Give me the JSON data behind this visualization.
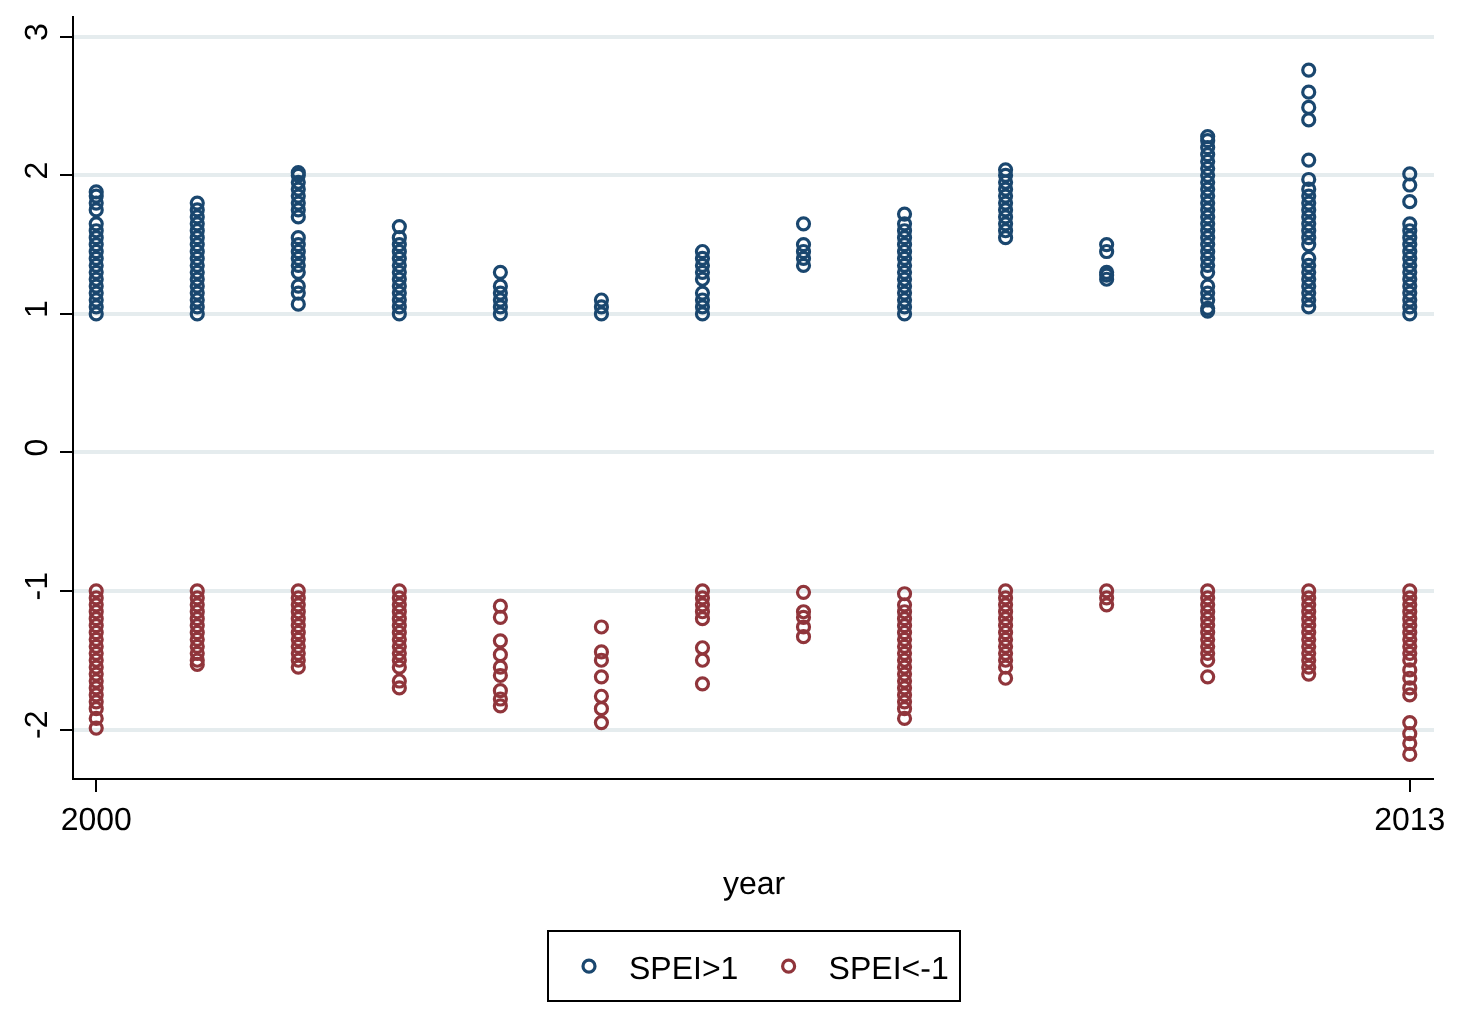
{
  "chart_data": {
    "type": "scatter",
    "xlabel": "year",
    "xlim": [
      1999.78,
      2013.24
    ],
    "xticks": [
      2000,
      2013
    ],
    "ylim": [
      -2.35,
      3.15
    ],
    "yticks": [
      -2,
      -1,
      0,
      1,
      2,
      3
    ],
    "grid": "y",
    "legend": "bottom",
    "marker": "circle",
    "series": [
      {
        "name": "SPEI>1",
        "color": "#1a476f",
        "x": [
          2000,
          2000,
          2000,
          2000,
          2000,
          2000,
          2000,
          2000,
          2000,
          2000,
          2000,
          2000,
          2000,
          2000,
          2000,
          2000,
          2000,
          2000,
          2001,
          2001,
          2001,
          2001,
          2001,
          2001,
          2001,
          2001,
          2001,
          2001,
          2001,
          2001,
          2001,
          2001,
          2001,
          2001,
          2001,
          2002,
          2002,
          2002,
          2002,
          2002,
          2002,
          2002,
          2002,
          2002,
          2002,
          2002,
          2002,
          2002,
          2002,
          2002,
          2002,
          2002,
          2003,
          2003,
          2003,
          2003,
          2003,
          2003,
          2003,
          2003,
          2003,
          2003,
          2003,
          2003,
          2003,
          2004,
          2004,
          2004,
          2004,
          2004,
          2004,
          2005,
          2005,
          2005,
          2006,
          2006,
          2006,
          2006,
          2006,
          2006,
          2006,
          2006,
          2006,
          2007,
          2007,
          2007,
          2007,
          2007,
          2008,
          2008,
          2008,
          2008,
          2008,
          2008,
          2008,
          2008,
          2008,
          2008,
          2008,
          2008,
          2008,
          2008,
          2008,
          2009,
          2009,
          2009,
          2009,
          2009,
          2009,
          2009,
          2009,
          2009,
          2009,
          2009,
          2010,
          2010,
          2010,
          2010,
          2010,
          2011,
          2011,
          2011,
          2011,
          2011,
          2011,
          2011,
          2011,
          2011,
          2011,
          2011,
          2011,
          2011,
          2011,
          2011,
          2011,
          2011,
          2011,
          2011,
          2011,
          2011,
          2011,
          2011,
          2011,
          2011,
          2011,
          2012,
          2012,
          2012,
          2012,
          2012,
          2012,
          2012,
          2012,
          2012,
          2012,
          2012,
          2012,
          2012,
          2012,
          2012,
          2012,
          2012,
          2012,
          2012,
          2012,
          2012,
          2012,
          2012,
          2013,
          2013,
          2013,
          2013,
          2013,
          2013,
          2013,
          2013,
          2013,
          2013,
          2013,
          2013,
          2013,
          2013,
          2013,
          2013,
          2013
        ],
        "values": [
          1.0,
          1.05,
          1.1,
          1.15,
          1.2,
          1.25,
          1.3,
          1.35,
          1.4,
          1.45,
          1.5,
          1.55,
          1.6,
          1.65,
          1.75,
          1.8,
          1.85,
          1.88,
          1.0,
          1.05,
          1.1,
          1.15,
          1.2,
          1.25,
          1.3,
          1.35,
          1.4,
          1.45,
          1.5,
          1.55,
          1.6,
          1.65,
          1.7,
          1.75,
          1.8,
          1.07,
          1.15,
          1.2,
          1.3,
          1.35,
          1.4,
          1.45,
          1.5,
          1.55,
          1.7,
          1.75,
          1.8,
          1.85,
          1.9,
          1.95,
          2.0,
          2.02,
          1.0,
          1.05,
          1.1,
          1.15,
          1.2,
          1.25,
          1.3,
          1.35,
          1.4,
          1.45,
          1.5,
          1.55,
          1.63,
          1.0,
          1.05,
          1.1,
          1.15,
          1.2,
          1.3,
          1.0,
          1.05,
          1.1,
          1.0,
          1.05,
          1.1,
          1.15,
          1.25,
          1.3,
          1.35,
          1.4,
          1.45,
          1.35,
          1.4,
          1.45,
          1.5,
          1.65,
          1.0,
          1.05,
          1.1,
          1.15,
          1.2,
          1.25,
          1.3,
          1.35,
          1.4,
          1.45,
          1.5,
          1.55,
          1.6,
          1.65,
          1.72,
          1.55,
          1.6,
          1.65,
          1.7,
          1.75,
          1.8,
          1.85,
          1.9,
          1.95,
          2.0,
          2.04,
          1.25,
          1.28,
          1.3,
          1.45,
          1.5,
          1.04,
          1.1,
          1.15,
          1.2,
          1.3,
          1.35,
          1.4,
          1.45,
          1.5,
          1.55,
          1.6,
          1.65,
          1.7,
          1.75,
          1.8,
          1.85,
          1.9,
          1.95,
          2.0,
          2.05,
          2.1,
          2.15,
          2.2,
          2.25,
          2.28,
          1.02,
          1.05,
          1.1,
          1.15,
          1.2,
          1.25,
          1.3,
          1.35,
          1.4,
          1.5,
          1.55,
          1.6,
          1.65,
          1.7,
          1.75,
          1.8,
          1.85,
          1.9,
          1.97,
          2.11,
          2.4,
          2.49,
          2.6,
          2.76,
          1.0,
          1.05,
          1.1,
          1.15,
          1.2,
          1.25,
          1.3,
          1.35,
          1.4,
          1.45,
          1.5,
          1.55,
          1.6,
          1.65,
          1.81,
          1.93,
          2.01
        ]
      },
      {
        "name": "SPEI<-1",
        "color": "#90353b",
        "x": [
          2000,
          2000,
          2000,
          2000,
          2000,
          2000,
          2000,
          2000,
          2000,
          2000,
          2000,
          2000,
          2000,
          2000,
          2000,
          2000,
          2000,
          2000,
          2000,
          2000,
          2001,
          2001,
          2001,
          2001,
          2001,
          2001,
          2001,
          2001,
          2001,
          2001,
          2001,
          2001,
          2002,
          2002,
          2002,
          2002,
          2002,
          2002,
          2002,
          2002,
          2002,
          2002,
          2002,
          2002,
          2003,
          2003,
          2003,
          2003,
          2003,
          2003,
          2003,
          2003,
          2003,
          2003,
          2003,
          2003,
          2003,
          2003,
          2004,
          2004,
          2004,
          2004,
          2004,
          2004,
          2004,
          2004,
          2004,
          2005,
          2005,
          2005,
          2005,
          2005,
          2005,
          2005,
          2006,
          2006,
          2006,
          2006,
          2006,
          2006,
          2006,
          2006,
          2007,
          2007,
          2007,
          2007,
          2007,
          2008,
          2008,
          2008,
          2008,
          2008,
          2008,
          2008,
          2008,
          2008,
          2008,
          2008,
          2008,
          2008,
          2008,
          2008,
          2008,
          2008,
          2008,
          2009,
          2009,
          2009,
          2009,
          2009,
          2009,
          2009,
          2009,
          2009,
          2009,
          2009,
          2009,
          2009,
          2010,
          2010,
          2010,
          2011,
          2011,
          2011,
          2011,
          2011,
          2011,
          2011,
          2011,
          2011,
          2011,
          2011,
          2011,
          2012,
          2012,
          2012,
          2012,
          2012,
          2012,
          2012,
          2012,
          2012,
          2012,
          2012,
          2012,
          2012,
          2013,
          2013,
          2013,
          2013,
          2013,
          2013,
          2013,
          2013,
          2013,
          2013,
          2013,
          2013,
          2013,
          2013,
          2013,
          2013,
          2013,
          2013,
          2013
        ],
        "values": [
          -1.0,
          -1.05,
          -1.1,
          -1.15,
          -1.2,
          -1.25,
          -1.3,
          -1.35,
          -1.4,
          -1.45,
          -1.5,
          -1.55,
          -1.6,
          -1.65,
          -1.7,
          -1.75,
          -1.8,
          -1.85,
          -1.92,
          -1.99,
          -1.0,
          -1.05,
          -1.1,
          -1.15,
          -1.2,
          -1.25,
          -1.3,
          -1.35,
          -1.4,
          -1.45,
          -1.5,
          -1.53,
          -1.0,
          -1.05,
          -1.1,
          -1.15,
          -1.2,
          -1.25,
          -1.3,
          -1.35,
          -1.4,
          -1.45,
          -1.5,
          -1.55,
          -1.0,
          -1.05,
          -1.1,
          -1.15,
          -1.2,
          -1.25,
          -1.3,
          -1.35,
          -1.4,
          -1.45,
          -1.5,
          -1.55,
          -1.65,
          -1.7,
          -1.11,
          -1.19,
          -1.36,
          -1.46,
          -1.55,
          -1.61,
          -1.72,
          -1.78,
          -1.83,
          -1.26,
          -1.44,
          -1.5,
          -1.62,
          -1.76,
          -1.85,
          -1.95,
          -1.0,
          -1.05,
          -1.1,
          -1.15,
          -1.2,
          -1.41,
          -1.5,
          -1.67,
          -1.01,
          -1.15,
          -1.19,
          -1.26,
          -1.33,
          -1.02,
          -1.1,
          -1.15,
          -1.2,
          -1.25,
          -1.3,
          -1.35,
          -1.4,
          -1.45,
          -1.5,
          -1.55,
          -1.6,
          -1.65,
          -1.7,
          -1.75,
          -1.8,
          -1.85,
          -1.92,
          -1.0,
          -1.05,
          -1.1,
          -1.15,
          -1.2,
          -1.25,
          -1.3,
          -1.35,
          -1.4,
          -1.45,
          -1.5,
          -1.55,
          -1.63,
          -1.0,
          -1.05,
          -1.1,
          -1.0,
          -1.05,
          -1.1,
          -1.15,
          -1.2,
          -1.25,
          -1.3,
          -1.35,
          -1.4,
          -1.45,
          -1.5,
          -1.62,
          -1.0,
          -1.05,
          -1.1,
          -1.15,
          -1.2,
          -1.25,
          -1.3,
          -1.35,
          -1.4,
          -1.45,
          -1.5,
          -1.55,
          -1.6,
          -1.0,
          -1.05,
          -1.1,
          -1.15,
          -1.2,
          -1.25,
          -1.3,
          -1.35,
          -1.4,
          -1.45,
          -1.5,
          -1.57,
          -1.63,
          -1.7,
          -1.75,
          -1.95,
          -2.03,
          -2.1,
          -2.18
        ]
      }
    ]
  }
}
